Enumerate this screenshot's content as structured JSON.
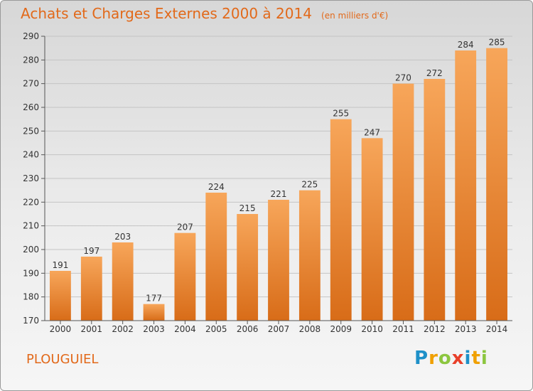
{
  "header": {
    "title": "Achats et Charges Externes 2000 à 2014",
    "subtitle": "(en milliers d'€)"
  },
  "footer": {
    "commune": "PLOUGUIEL",
    "logo_letters": [
      "P",
      "r",
      "o",
      "x",
      "i",
      "t",
      "i"
    ],
    "logo_colors": [
      "#1e90c8",
      "#f0a000",
      "#8cc63f",
      "#e8402a",
      "#1e90c8",
      "#f0a000",
      "#8cc63f"
    ]
  },
  "chart_data": {
    "type": "bar",
    "title": "Achats et Charges Externes 2000 à 2014",
    "categories": [
      "2000",
      "2001",
      "2002",
      "2003",
      "2004",
      "2005",
      "2006",
      "2007",
      "2008",
      "2009",
      "2010",
      "2011",
      "2012",
      "2013",
      "2014"
    ],
    "values": [
      191,
      197,
      203,
      177,
      207,
      224,
      215,
      221,
      225,
      255,
      247,
      270,
      272,
      284,
      285
    ],
    "ylim": [
      170,
      290
    ],
    "yticks": [
      170,
      180,
      190,
      200,
      210,
      220,
      230,
      240,
      250,
      260,
      270,
      280,
      290
    ],
    "grid": true,
    "bar_color_top": "#f7a65a",
    "bar_color_bottom": "#d86c18"
  }
}
